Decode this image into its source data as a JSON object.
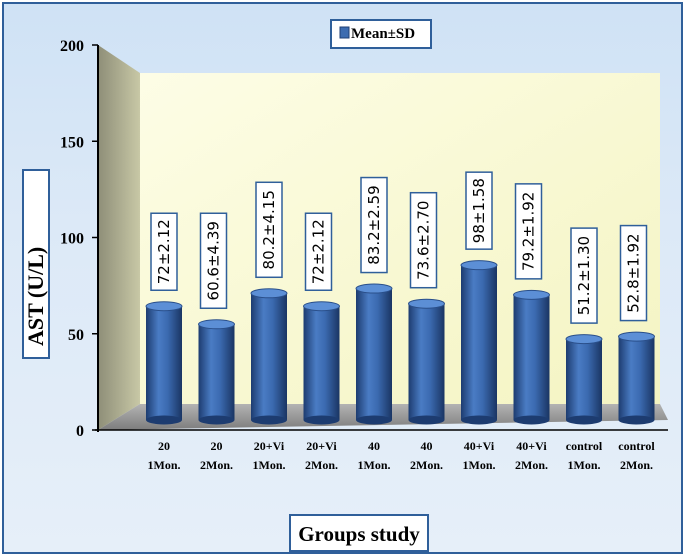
{
  "chart_data": {
    "type": "bar",
    "categories": [
      [
        "20",
        "1Mon."
      ],
      [
        "20",
        "2Mon."
      ],
      [
        "20+Vi",
        "1Mon."
      ],
      [
        "20+Vi",
        "2Mon."
      ],
      [
        "40",
        "1Mon."
      ],
      [
        "40",
        "2Mon."
      ],
      [
        "40+Vi",
        "1Mon."
      ],
      [
        "40+Vi",
        "2Mon."
      ],
      [
        "control",
        "1Mon."
      ],
      [
        "control",
        "2Mon."
      ]
    ],
    "series": [
      {
        "name": "Mean±SD",
        "values": [
          72,
          60.6,
          80.2,
          72,
          83.2,
          73.6,
          98,
          79.2,
          51.2,
          52.8
        ]
      }
    ],
    "data_labels": [
      "72±2.12",
      "60.6±4.39",
      "80.2±4.15",
      "72±2.12",
      "83.2±2.59",
      "73.6±2.70",
      "98±1.58",
      "79.2±1.92",
      "51.2±1.30",
      "52.8±1.92"
    ],
    "ylabel": "AST (U/L)",
    "xlabel": "Groups study",
    "ylim": [
      0,
      200
    ],
    "yticks": [
      "0",
      "50",
      "100",
      "150",
      "200"
    ],
    "legend_position": "top-center",
    "colors": {
      "bar": "#3d6cb0",
      "bar_dark": "#1f3f75",
      "wall": "#fbfbd6",
      "floor": "#9a9a9a",
      "frame": "#2f5f9a"
    }
  }
}
